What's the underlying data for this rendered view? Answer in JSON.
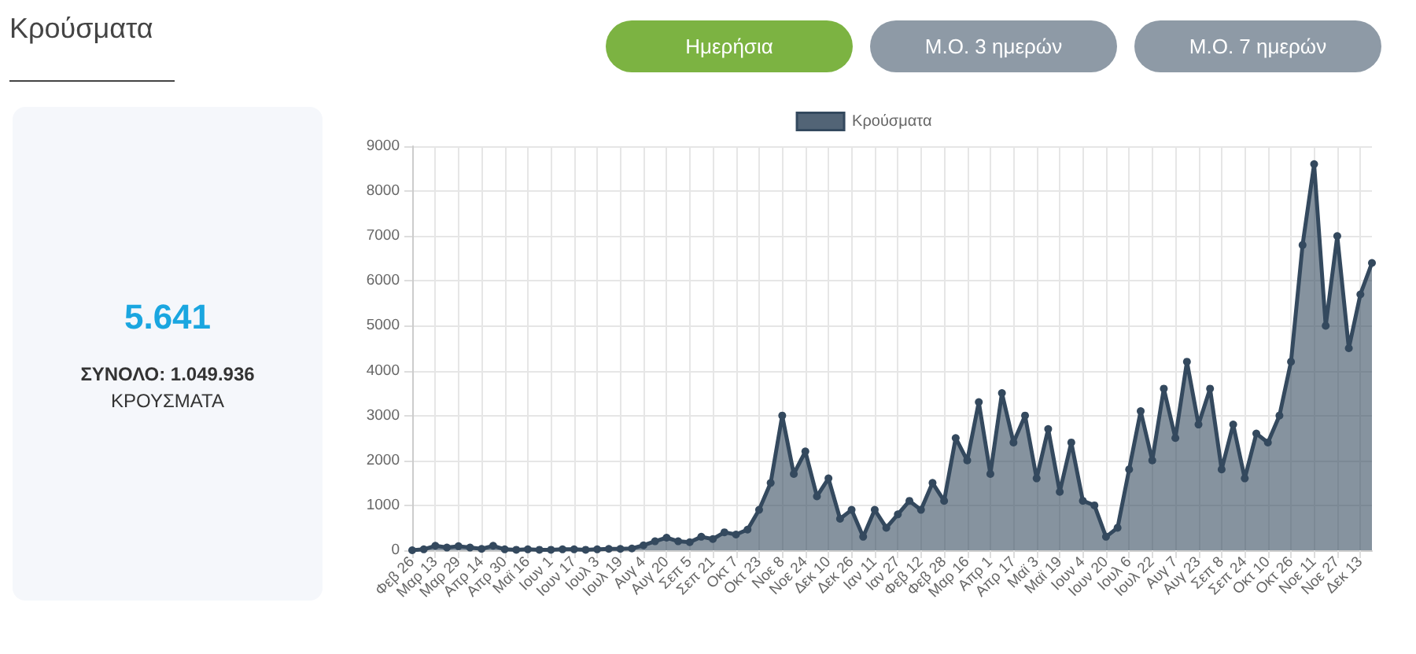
{
  "chart_data": [
    {
      "type": "area",
      "annotations": [
        "Ημερήσια",
        "Μ.Ο. 3 ημερών",
        "Μ.Ο. 7 ημερών"
      ],
      "categories": [
        "Φεβ 26",
        null,
        "Μαρ 13",
        null,
        "Μαρ 29",
        null,
        "Απρ 14",
        null,
        "Απρ 30",
        null,
        "Μαϊ 16",
        null,
        "Ιουν 1",
        null,
        "Ιουν 17",
        null,
        "Ιουλ 3",
        null,
        "Ιουλ 19",
        null,
        "Αυγ 4",
        null,
        "Αυγ 20",
        null,
        "Σεπ 5",
        null,
        "Σεπ 21",
        null,
        "Οκτ 7",
        null,
        "Οκτ 23",
        null,
        "Νοε 8",
        null,
        "Νοε 24",
        null,
        "Δεκ 10",
        null,
        "Δεκ 26",
        null,
        "Ιαν 11",
        null,
        "Ιαν 27",
        null,
        "Φεβ 12",
        null,
        "Φεβ 28",
        null,
        "Μαρ 16",
        null,
        "Απρ 1",
        null,
        "Απρ 17",
        null,
        "Μαϊ 3",
        null,
        "Μαϊ 19",
        null,
        "Ιουν 4",
        null,
        "Ιουν 20",
        null,
        "Ιουλ 6",
        null,
        "Ιουλ 22",
        null,
        "Αυγ 7",
        null,
        "Αυγ 23",
        null,
        "Σεπ 8",
        null,
        "Σεπ 24",
        null,
        "Οκτ 10",
        null,
        "Οκτ 26",
        null,
        "Νοε 11",
        null,
        "Νοε 27",
        null,
        "Δεκ 13",
        null
      ],
      "series": [
        {
          "name": "Κρούσματα",
          "color": "#34495e",
          "values": [
            0,
            20,
            100,
            60,
            90,
            60,
            30,
            100,
            20,
            10,
            20,
            10,
            10,
            20,
            20,
            10,
            20,
            30,
            30,
            40,
            110,
            200,
            280,
            200,
            180,
            300,
            250,
            400,
            350,
            460,
            900,
            1500,
            3000,
            1700,
            2200,
            1200,
            1600,
            700,
            900,
            300,
            900,
            500,
            800,
            1100,
            900,
            1500,
            1100,
            2500,
            2000,
            3300,
            1700,
            3500,
            2400,
            3000,
            1600,
            2700,
            1300,
            2400,
            1100,
            1000,
            300,
            500,
            1800,
            3100,
            2000,
            3600,
            2500,
            4200,
            2800,
            3600,
            1800,
            2800,
            1600,
            2600,
            2400,
            3000,
            4200,
            6800,
            8600,
            5000,
            7000,
            4500,
            5700,
            6400
          ]
        }
      ],
      "ylim": [
        0,
        9000
      ],
      "yticks": [
        0,
        1000,
        2000,
        3000,
        4000,
        5000,
        6000,
        7000,
        8000,
        9000
      ],
      "grid": true,
      "legend": "top",
      "marker": "circle"
    },
    {
      "type": "other",
      "title": "Κρούσματα",
      "annotations": [
        "5.641",
        "ΣΥΝΟΛΟ: 1.049.936",
        "ΚΡΟΥΣΜΑΤΑ"
      ]
    }
  ]
}
